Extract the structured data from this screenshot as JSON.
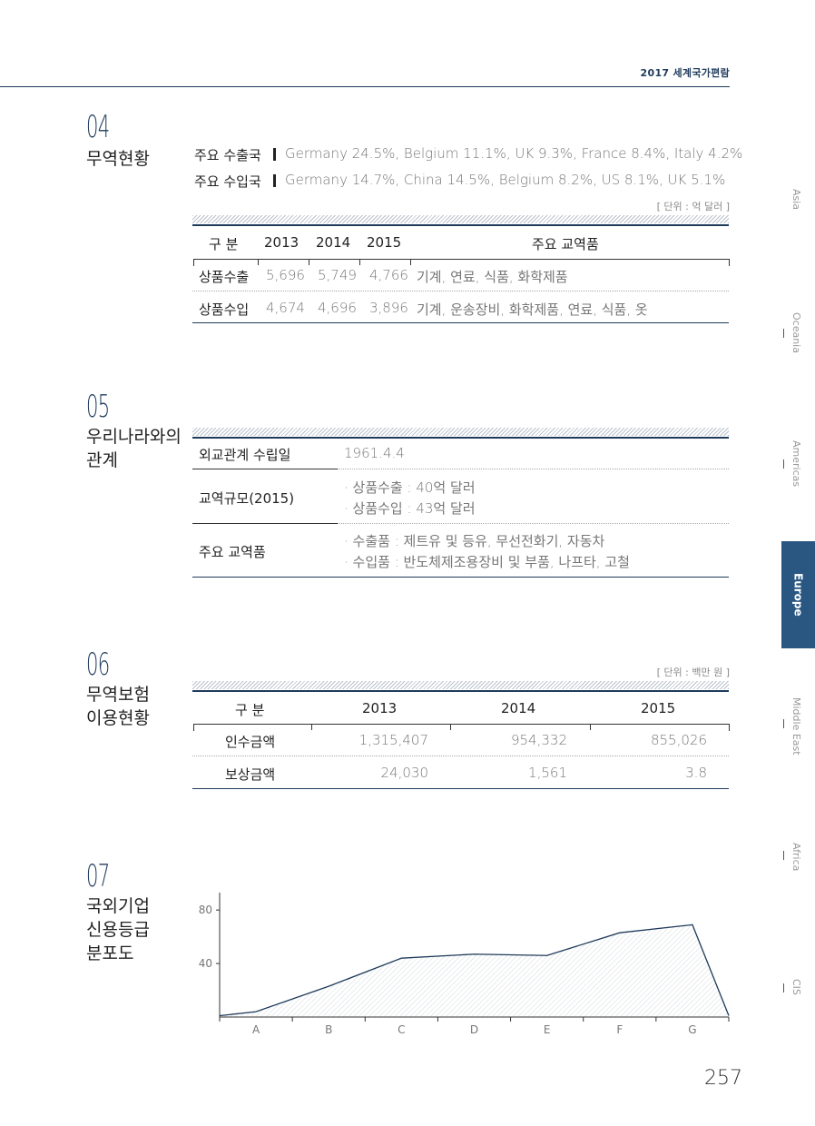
{
  "header": {
    "title": "2017 세계국가편람"
  },
  "page_number": "257",
  "side_nav": {
    "items": [
      "Asia",
      "Oceania",
      "Americas",
      "Europe",
      "Middle East",
      "Africa",
      "CIS"
    ],
    "active": "Europe"
  },
  "section04": {
    "num": "04",
    "title": "무역현황",
    "export_label": "주요 수출국",
    "export_value": "Germany 24.5%, Belgium 11.1%, UK 9.3%, France 8.4%, Italy 4.2%",
    "import_label": "주요 수입국",
    "import_value": "Germany 14.7%, China 14.5%, Belgium 8.2%, US 8.1%, UK 5.1%",
    "unit": "[ 단위 : 억 달러 ]",
    "headers": [
      "구 분",
      "2013",
      "2014",
      "2015",
      "주요 교역품"
    ],
    "rows": [
      {
        "label": "상품수출",
        "v2013": "5,696",
        "v2014": "5,749",
        "v2015": "4,766",
        "items": "기계, 연료, 식품, 화학제품"
      },
      {
        "label": "상품수입",
        "v2013": "4,674",
        "v2014": "4,696",
        "v2015": "3,896",
        "items": "기계, 운송장비, 화학제품, 연료, 식품, 옷"
      }
    ]
  },
  "section05": {
    "num": "05",
    "title_line1": "우리나라와의",
    "title_line2": "관계",
    "rows": [
      {
        "label": "외교관계 수립일",
        "values": [
          "1961.4.4"
        ]
      },
      {
        "label": "교역규모(2015)",
        "values": [
          "· 상품수출 : 40억 달러",
          "· 상품수입 : 43억 달러"
        ]
      },
      {
        "label": "주요 교역품",
        "values": [
          "· 수출품 : 제트유 및 등유, 무선전화기, 자동차",
          "· 수입품 : 반도체제조용장비 및 부품, 나프타, 고철"
        ]
      }
    ]
  },
  "section06": {
    "num": "06",
    "title_line1": "무역보험",
    "title_line2": "이용현황",
    "unit": "[ 단위 : 백만 원 ]",
    "headers": [
      "구 분",
      "2013",
      "2014",
      "2015"
    ],
    "rows": [
      {
        "label": "인수금액",
        "v2013": "1,315,407",
        "v2014": "954,332",
        "v2015": "855,026"
      },
      {
        "label": "보상금액",
        "v2013": "24,030",
        "v2014": "1,561",
        "v2015": "3.8"
      }
    ]
  },
  "section07": {
    "num": "07",
    "title_line1": "국외기업",
    "title_line2": "신용등급",
    "title_line3": "분포도"
  },
  "chart_data": {
    "type": "area",
    "categories": [
      "A",
      "B",
      "C",
      "D",
      "E",
      "F",
      "G"
    ],
    "x": [
      0,
      0.5,
      1.5,
      2.5,
      3.5,
      4.5,
      5.5,
      6.5,
      7.0
    ],
    "values": [
      1,
      4,
      23,
      44,
      47,
      46,
      63,
      69,
      1
    ],
    "ylim": [
      0,
      93
    ],
    "yticks": [
      40,
      80
    ],
    "color": "#1f3b5b"
  }
}
